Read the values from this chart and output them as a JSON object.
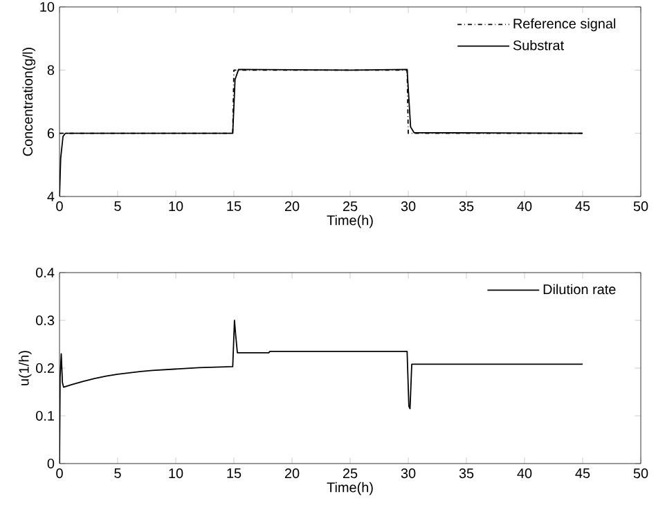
{
  "chart_data": [
    {
      "type": "line",
      "xlabel": "Time(h)",
      "ylabel": "Concentration(g/l)",
      "xlim": [
        0,
        50
      ],
      "xticks": [
        0,
        5,
        10,
        15,
        20,
        25,
        30,
        35,
        40,
        45,
        50
      ],
      "ylim": [
        4,
        10
      ],
      "yticks": [
        4,
        6,
        8,
        10
      ],
      "legend": "top right",
      "grid": false,
      "series": [
        {
          "name": "Reference signal",
          "color": "#000000",
          "line_style": "dashdot",
          "x": [
            0,
            14.9,
            15.0,
            29.9,
            30.0,
            45
          ],
          "values": [
            6,
            6,
            8,
            8,
            6,
            6
          ]
        },
        {
          "name": "Substrat",
          "color": "#000000",
          "line_style": "solid",
          "x": [
            0,
            0.1,
            0.3,
            0.5,
            14.9,
            15.1,
            15.4,
            25,
            29.9,
            30.2,
            30.5,
            45
          ],
          "values": [
            4,
            5.2,
            5.9,
            6,
            6,
            7.7,
            8.02,
            8,
            8.02,
            6.2,
            6.02,
            6
          ]
        }
      ]
    },
    {
      "type": "line",
      "xlabel": "Time(h)",
      "ylabel": "u(1/h)",
      "xlim": [
        0,
        50
      ],
      "xticks": [
        0,
        5,
        10,
        15,
        20,
        25,
        30,
        35,
        40,
        45,
        50
      ],
      "ylim": [
        0,
        0.4
      ],
      "yticks": [
        0,
        0.1,
        0.2,
        0.3,
        0.4
      ],
      "legend": "top right",
      "grid": false,
      "series": [
        {
          "name": "Dilution rate",
          "color": "#000000",
          "line_style": "solid",
          "x": [
            0,
            0.05,
            0.15,
            0.25,
            0.35,
            1,
            2,
            3,
            4,
            5,
            6,
            7,
            8,
            10,
            12,
            14.9,
            15.05,
            15.15,
            15.3,
            18,
            18.1,
            29.9,
            30.05,
            30.15,
            30.3,
            45
          ],
          "values": [
            0,
            0.18,
            0.23,
            0.17,
            0.16,
            0.165,
            0.172,
            0.178,
            0.183,
            0.187,
            0.19,
            0.193,
            0.195,
            0.198,
            0.201,
            0.203,
            0.3,
            0.27,
            0.232,
            0.232,
            0.235,
            0.235,
            0.12,
            0.115,
            0.208,
            0.208
          ]
        }
      ]
    }
  ]
}
